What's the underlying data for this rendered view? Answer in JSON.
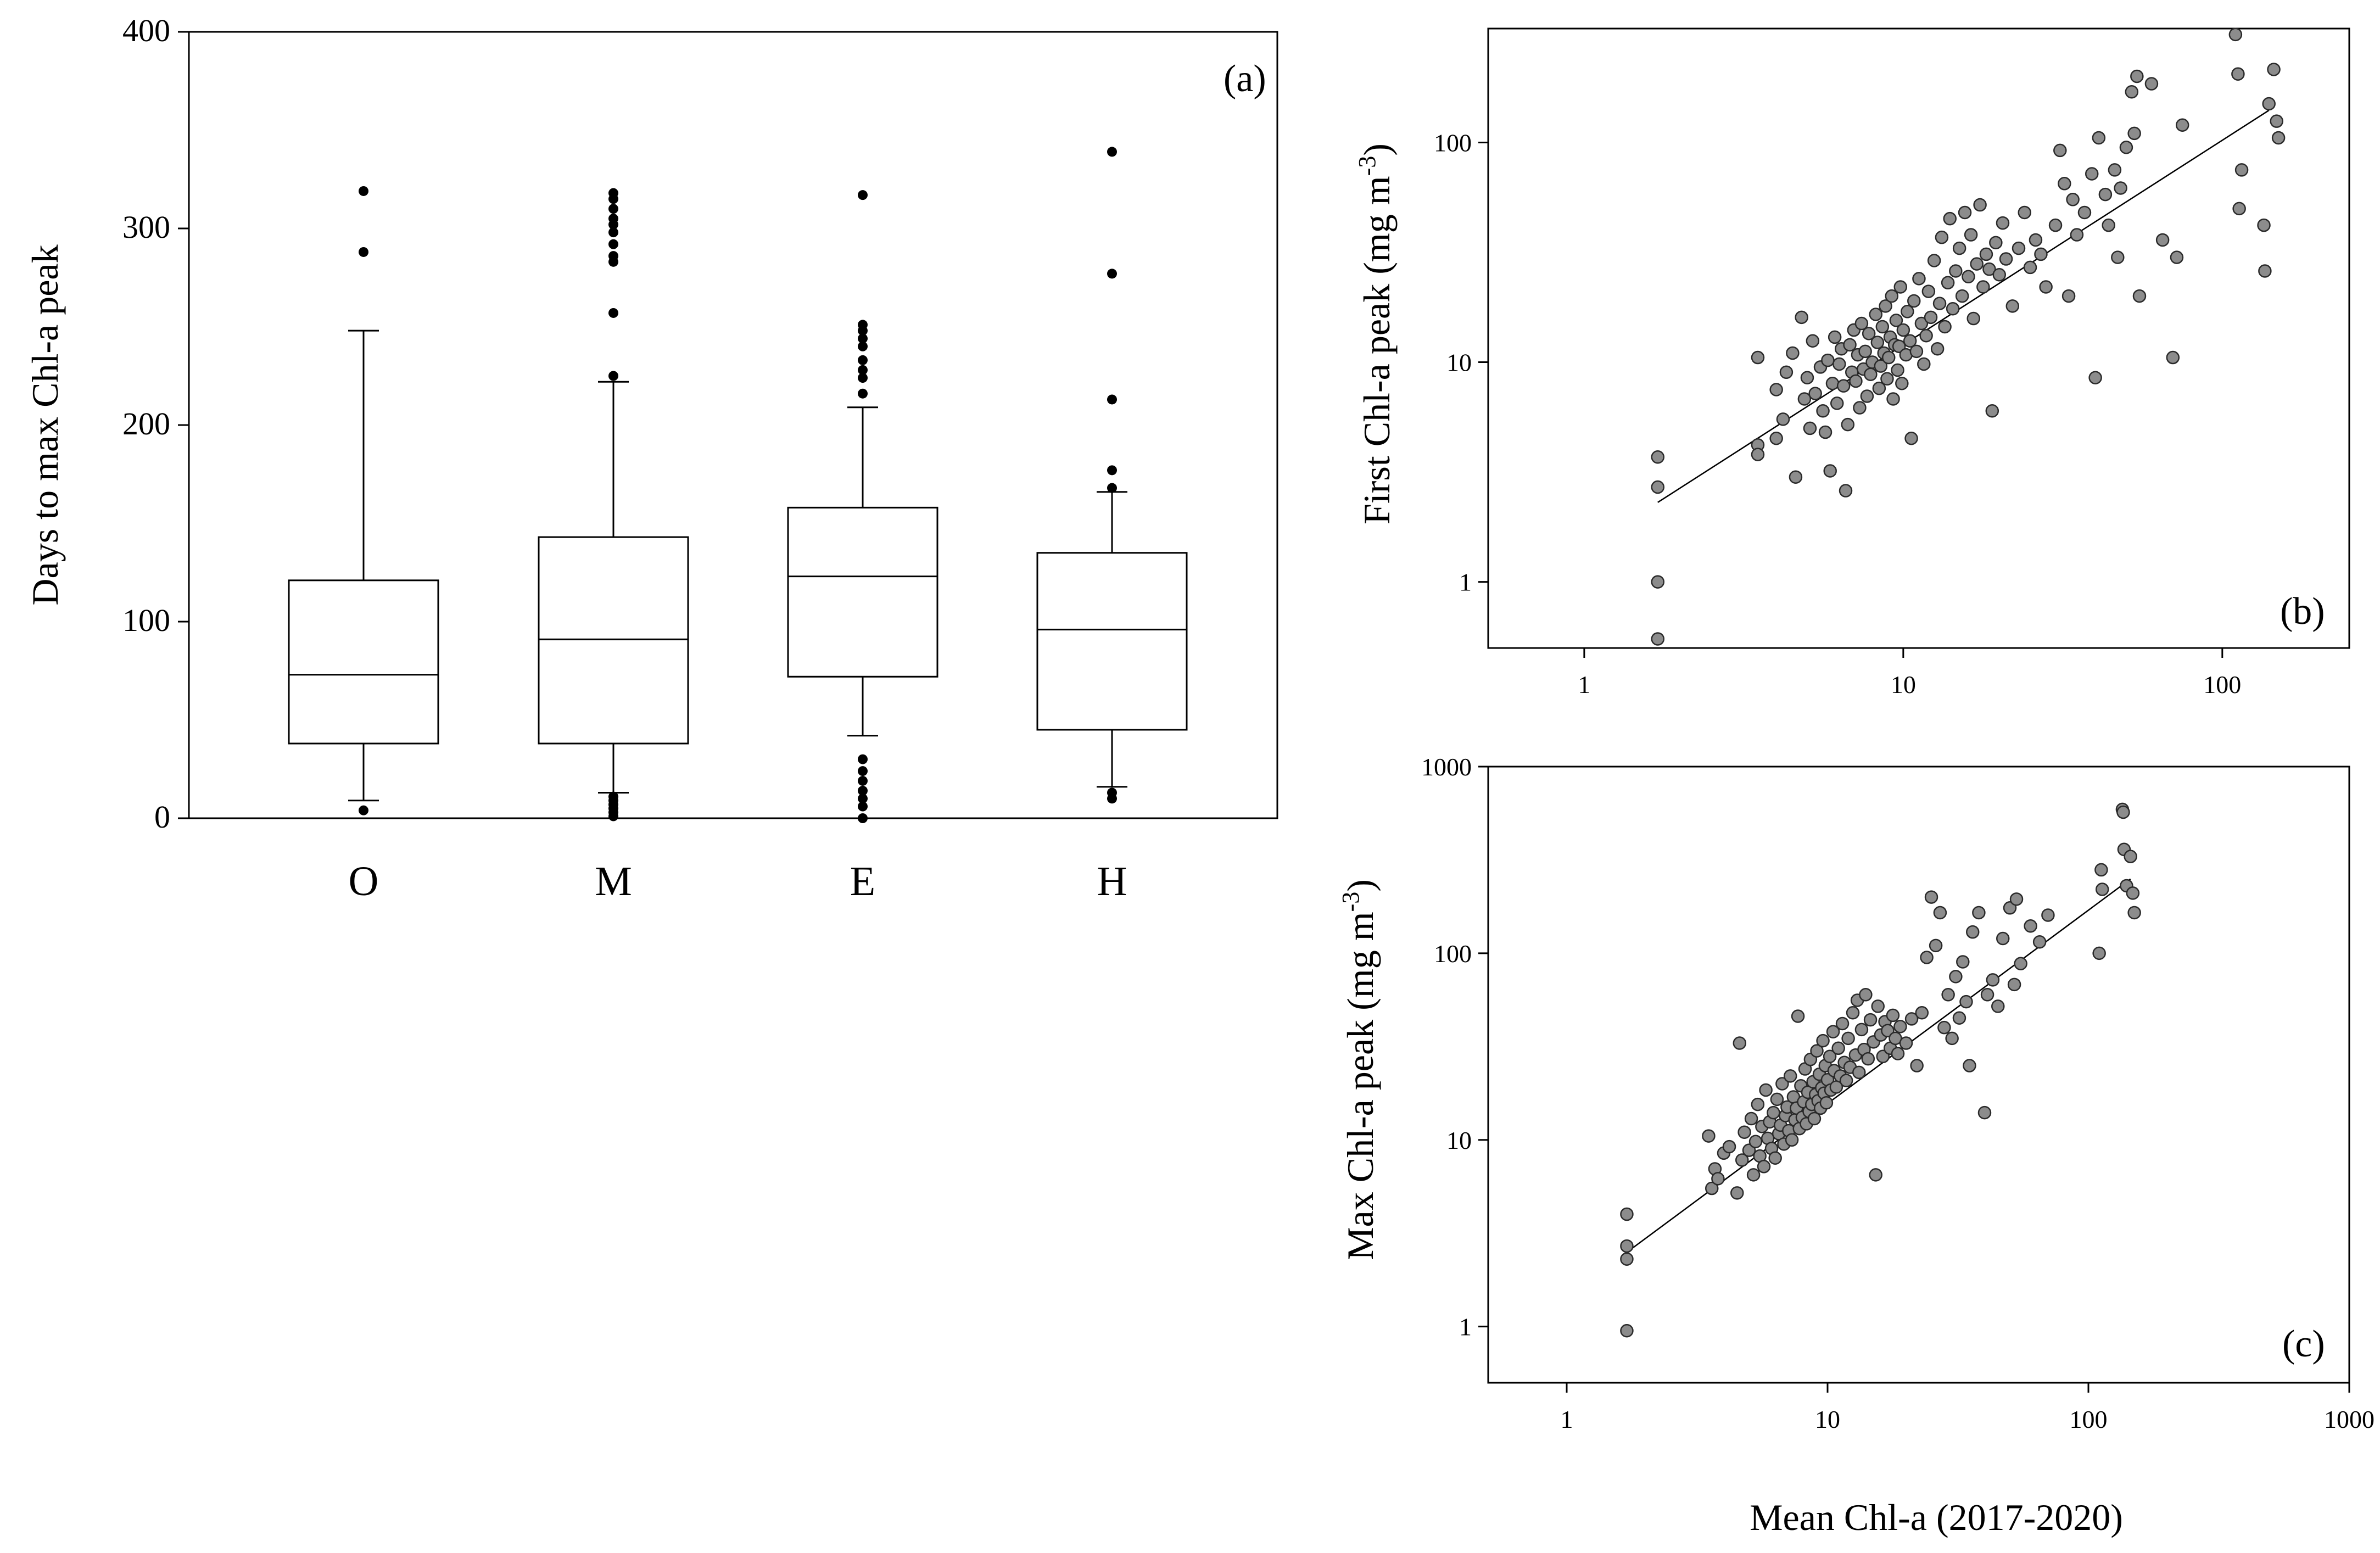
{
  "chart_data": [
    {
      "panel": "(a)",
      "type": "box",
      "ylabel": "Days to max  Chl-a peak",
      "ylim": [
        0,
        400
      ],
      "yticks": [
        "0",
        "100",
        "200",
        "300",
        "400"
      ],
      "categories": [
        "O",
        "M",
        "E",
        "H"
      ],
      "boxes": [
        {
          "name": "O",
          "whisker_low": 9,
          "q1": 38,
          "median": 73,
          "q3": 121,
          "whisker_high": 248,
          "outliers": [
            4,
            288,
            319
          ]
        },
        {
          "name": "M",
          "whisker_low": 13,
          "q1": 38,
          "median": 91,
          "q3": 143,
          "whisker_high": 222,
          "outliers": [
            1,
            3,
            5,
            7,
            9,
            11,
            225,
            257,
            283,
            286,
            292,
            298,
            302,
            305,
            310,
            315,
            318
          ]
        },
        {
          "name": "E",
          "whisker_low": 42,
          "q1": 72,
          "median": 123,
          "q3": 158,
          "whisker_high": 209,
          "outliers": [
            0,
            6,
            10,
            14,
            19,
            24,
            30,
            216,
            224,
            228,
            233,
            240,
            244,
            248,
            251,
            317
          ]
        },
        {
          "name": "H",
          "whisker_low": 16,
          "q1": 45,
          "median": 96,
          "q3": 135,
          "whisker_high": 166,
          "outliers": [
            10,
            13,
            168,
            177,
            213,
            277,
            339
          ]
        }
      ]
    },
    {
      "panel": "(b)",
      "type": "scatter",
      "xscale": "log",
      "yscale": "log",
      "xlabel": "",
      "ylabel": "First Chl-a peak (mg m",
      "ylabel_sup": "-3",
      "ylabel_close": ")",
      "xlim": [
        0.5,
        250
      ],
      "ylim": [
        0.5,
        330
      ],
      "xticks": [
        "1",
        "10",
        "100"
      ],
      "yticks": [
        "1",
        "10",
        "100"
      ],
      "fit_line": {
        "x": [
          1.7,
          140
        ],
        "y": [
          2.3,
          140
        ]
      },
      "points": [
        [
          1.7,
          3.7
        ],
        [
          1.7,
          2.7
        ],
        [
          1.7,
          1.0
        ],
        [
          1.7,
          0.55
        ],
        [
          3.5,
          10.5
        ],
        [
          3.5,
          4.2
        ],
        [
          3.5,
          3.8
        ],
        [
          4.0,
          7.5
        ],
        [
          4.0,
          4.5
        ],
        [
          4.2,
          5.5
        ],
        [
          4.3,
          9.0
        ],
        [
          4.5,
          11.0
        ],
        [
          4.6,
          3.0
        ],
        [
          4.8,
          16.0
        ],
        [
          4.9,
          6.8
        ],
        [
          5.0,
          8.5
        ],
        [
          5.1,
          5.0
        ],
        [
          5.2,
          12.5
        ],
        [
          5.3,
          7.2
        ],
        [
          5.5,
          9.5
        ],
        [
          5.6,
          6.0
        ],
        [
          5.7,
          4.8
        ],
        [
          5.8,
          10.2
        ],
        [
          5.9,
          3.2
        ],
        [
          6.0,
          8.0
        ],
        [
          6.1,
          13.0
        ],
        [
          6.2,
          6.5
        ],
        [
          6.3,
          9.8
        ],
        [
          6.4,
          11.5
        ],
        [
          6.5,
          7.8
        ],
        [
          6.6,
          2.6
        ],
        [
          6.7,
          5.2
        ],
        [
          6.8,
          12.0
        ],
        [
          6.9,
          9.0
        ],
        [
          7.0,
          14.0
        ],
        [
          7.1,
          8.2
        ],
        [
          7.2,
          10.8
        ],
        [
          7.3,
          6.2
        ],
        [
          7.4,
          15.0
        ],
        [
          7.5,
          9.3
        ],
        [
          7.6,
          11.2
        ],
        [
          7.7,
          7.0
        ],
        [
          7.8,
          13.5
        ],
        [
          7.9,
          8.8
        ],
        [
          8.0,
          10.0
        ],
        [
          8.2,
          16.5
        ],
        [
          8.3,
          12.3
        ],
        [
          8.4,
          7.6
        ],
        [
          8.5,
          9.6
        ],
        [
          8.6,
          14.5
        ],
        [
          8.7,
          11.0
        ],
        [
          8.8,
          18.0
        ],
        [
          8.9,
          8.4
        ],
        [
          9.0,
          10.5
        ],
        [
          9.1,
          13.0
        ],
        [
          9.2,
          20.0
        ],
        [
          9.3,
          6.8
        ],
        [
          9.4,
          12.0
        ],
        [
          9.5,
          15.5
        ],
        [
          9.6,
          9.2
        ],
        [
          9.7,
          11.8
        ],
        [
          9.8,
          22.0
        ],
        [
          9.9,
          8.0
        ],
        [
          10.0,
          14.0
        ],
        [
          10.2,
          10.8
        ],
        [
          10.3,
          17.0
        ],
        [
          10.5,
          12.5
        ],
        [
          10.6,
          4.5
        ],
        [
          10.8,
          19.0
        ],
        [
          11.0,
          11.2
        ],
        [
          11.2,
          24.0
        ],
        [
          11.4,
          15.0
        ],
        [
          11.6,
          9.8
        ],
        [
          11.8,
          13.2
        ],
        [
          12.0,
          21.0
        ],
        [
          12.2,
          16.0
        ],
        [
          12.5,
          29.0
        ],
        [
          12.8,
          11.5
        ],
        [
          13.0,
          18.5
        ],
        [
          13.2,
          37.0
        ],
        [
          13.5,
          14.5
        ],
        [
          13.8,
          23.0
        ],
        [
          14.0,
          45.0
        ],
        [
          14.3,
          17.5
        ],
        [
          14.6,
          26.0
        ],
        [
          15.0,
          33.0
        ],
        [
          15.3,
          20.0
        ],
        [
          15.6,
          48.0
        ],
        [
          16.0,
          24.5
        ],
        [
          16.3,
          38.0
        ],
        [
          16.6,
          15.8
        ],
        [
          17.0,
          28.0
        ],
        [
          17.4,
          52.0
        ],
        [
          17.8,
          22.0
        ],
        [
          18.2,
          31.0
        ],
        [
          18.6,
          26.5
        ],
        [
          19.0,
          6.0
        ],
        [
          19.5,
          35.0
        ],
        [
          20.0,
          25.0
        ],
        [
          20.5,
          43.0
        ],
        [
          21.0,
          29.5
        ],
        [
          22.0,
          18.0
        ],
        [
          23.0,
          33.0
        ],
        [
          24.0,
          48.0
        ],
        [
          25.0,
          27.0
        ],
        [
          26.0,
          36.0
        ],
        [
          27.0,
          31.0
        ],
        [
          28.0,
          22.0
        ],
        [
          30.0,
          42.0
        ],
        [
          31.0,
          92.0
        ],
        [
          32.0,
          65.0
        ],
        [
          33.0,
          20.0
        ],
        [
          34.0,
          55.0
        ],
        [
          35.0,
          38.0
        ],
        [
          37.0,
          48.0
        ],
        [
          39.0,
          72.0
        ],
        [
          40.0,
          8.5
        ],
        [
          41.0,
          105.0
        ],
        [
          43.0,
          58.0
        ],
        [
          44.0,
          42.0
        ],
        [
          46.0,
          75.0
        ],
        [
          47.0,
          30.0
        ],
        [
          48.0,
          62.0
        ],
        [
          50.0,
          95.0
        ],
        [
          52.0,
          170.0
        ],
        [
          53.0,
          110.0
        ],
        [
          54.0,
          200.0
        ],
        [
          55.0,
          20.0
        ],
        [
          60.0,
          185.0
        ],
        [
          65.0,
          36.0
        ],
        [
          70.0,
          10.5
        ],
        [
          72.0,
          30.0
        ],
        [
          75.0,
          120.0
        ],
        [
          110.0,
          310.0
        ],
        [
          112.0,
          205.0
        ],
        [
          113.0,
          50.0
        ],
        [
          115.0,
          75.0
        ],
        [
          135.0,
          42.0
        ],
        [
          136.0,
          26.0
        ],
        [
          140.0,
          150.0
        ],
        [
          145.0,
          215.0
        ],
        [
          148.0,
          125.0
        ],
        [
          150.0,
          105.0
        ]
      ]
    },
    {
      "panel": "(c)",
      "type": "scatter",
      "xscale": "log",
      "yscale": "log",
      "xlabel": "Mean Chl-a  (2017-2020)",
      "ylabel": "Max Chl-a peak (mg m",
      "ylabel_sup": "-3",
      "ylabel_close": ")",
      "xlim": [
        0.5,
        1000
      ],
      "ylim": [
        0.5,
        1000
      ],
      "xticks": [
        "1",
        "10",
        "100",
        "1000"
      ],
      "yticks": [
        "1",
        "10",
        "100",
        "1000"
      ],
      "fit_line": {
        "x": [
          1.7,
          145
        ],
        "y": [
          2.5,
          250
        ]
      },
      "points": [
        [
          1.7,
          4.0
        ],
        [
          1.7,
          2.7
        ],
        [
          1.7,
          2.3
        ],
        [
          1.7,
          0.95
        ],
        [
          3.5,
          10.5
        ],
        [
          3.6,
          5.5
        ],
        [
          3.7,
          7.0
        ],
        [
          3.8,
          6.2
        ],
        [
          4.0,
          8.5
        ],
        [
          4.2,
          9.2
        ],
        [
          4.5,
          5.2
        ],
        [
          4.6,
          33.0
        ],
        [
          4.7,
          7.8
        ],
        [
          4.8,
          11.0
        ],
        [
          5.0,
          8.8
        ],
        [
          5.1,
          13.0
        ],
        [
          5.2,
          6.5
        ],
        [
          5.3,
          9.8
        ],
        [
          5.4,
          15.5
        ],
        [
          5.5,
          8.2
        ],
        [
          5.6,
          11.8
        ],
        [
          5.7,
          7.2
        ],
        [
          5.8,
          18.5
        ],
        [
          5.9,
          10.2
        ],
        [
          6.0,
          12.5
        ],
        [
          6.1,
          9.0
        ],
        [
          6.2,
          14.0
        ],
        [
          6.3,
          8.0
        ],
        [
          6.4,
          16.5
        ],
        [
          6.5,
          10.8
        ],
        [
          6.6,
          12.0
        ],
        [
          6.7,
          20.0
        ],
        [
          6.8,
          9.5
        ],
        [
          6.9,
          13.5
        ],
        [
          7.0,
          15.0
        ],
        [
          7.1,
          11.2
        ],
        [
          7.2,
          22.0
        ],
        [
          7.3,
          10.0
        ],
        [
          7.4,
          17.0
        ],
        [
          7.5,
          12.8
        ],
        [
          7.6,
          14.8
        ],
        [
          7.7,
          46.0
        ],
        [
          7.8,
          11.5
        ],
        [
          7.9,
          19.5
        ],
        [
          8.0,
          13.2
        ],
        [
          8.1,
          16.0
        ],
        [
          8.2,
          24.0
        ],
        [
          8.3,
          12.2
        ],
        [
          8.4,
          18.0
        ],
        [
          8.5,
          14.2
        ],
        [
          8.6,
          27.0
        ],
        [
          8.7,
          15.5
        ],
        [
          8.8,
          20.5
        ],
        [
          8.9,
          13.0
        ],
        [
          9.0,
          17.5
        ],
        [
          9.1,
          30.0
        ],
        [
          9.2,
          16.2
        ],
        [
          9.3,
          22.5
        ],
        [
          9.4,
          14.8
        ],
        [
          9.5,
          19.0
        ],
        [
          9.6,
          34.0
        ],
        [
          9.7,
          17.8
        ],
        [
          9.8,
          25.0
        ],
        [
          9.9,
          15.8
        ],
        [
          10.0,
          21.0
        ],
        [
          10.2,
          28.0
        ],
        [
          10.3,
          18.5
        ],
        [
          10.5,
          38.0
        ],
        [
          10.6,
          23.5
        ],
        [
          10.8,
          19.2
        ],
        [
          11.0,
          31.0
        ],
        [
          11.2,
          22.0
        ],
        [
          11.4,
          42.0
        ],
        [
          11.6,
          26.0
        ],
        [
          11.8,
          20.8
        ],
        [
          12.0,
          35.0
        ],
        [
          12.2,
          24.5
        ],
        [
          12.5,
          48.0
        ],
        [
          12.8,
          28.5
        ],
        [
          13.0,
          56.0
        ],
        [
          13.2,
          23.0
        ],
        [
          13.5,
          39.0
        ],
        [
          13.8,
          30.5
        ],
        [
          14.0,
          60.0
        ],
        [
          14.3,
          27.2
        ],
        [
          14.6,
          44.0
        ],
        [
          15.0,
          33.5
        ],
        [
          15.3,
          6.5
        ],
        [
          15.6,
          52.0
        ],
        [
          16.0,
          36.5
        ],
        [
          16.3,
          28.0
        ],
        [
          16.6,
          43.0
        ],
        [
          17.0,
          38.5
        ],
        [
          17.4,
          31.0
        ],
        [
          17.8,
          46.5
        ],
        [
          18.2,
          35.0
        ],
        [
          18.6,
          29.0
        ],
        [
          19.0,
          40.5
        ],
        [
          20.0,
          33.0
        ],
        [
          21.0,
          44.5
        ],
        [
          22.0,
          25.0
        ],
        [
          23.0,
          48.0
        ],
        [
          24.0,
          95.0
        ],
        [
          25.0,
          200.0
        ],
        [
          26.0,
          110.0
        ],
        [
          27.0,
          165.0
        ],
        [
          28.0,
          40.0
        ],
        [
          29.0,
          60.0
        ],
        [
          30.0,
          35.0
        ],
        [
          31.0,
          75.0
        ],
        [
          32.0,
          45.0
        ],
        [
          33.0,
          90.0
        ],
        [
          34.0,
          55.0
        ],
        [
          35.0,
          25.0
        ],
        [
          36.0,
          130.0
        ],
        [
          38.0,
          165.0
        ],
        [
          40.0,
          14.0
        ],
        [
          41.0,
          60.0
        ],
        [
          43.0,
          72.0
        ],
        [
          45.0,
          52.0
        ],
        [
          47.0,
          120.0
        ],
        [
          50.0,
          175.0
        ],
        [
          52.0,
          68.0
        ],
        [
          53.0,
          195.0
        ],
        [
          55.0,
          88.0
        ],
        [
          60.0,
          140.0
        ],
        [
          65.0,
          115.0
        ],
        [
          70.0,
          160.0
        ],
        [
          110.0,
          100.0
        ],
        [
          112.0,
          280.0
        ],
        [
          113.0,
          220.0
        ],
        [
          135.0,
          590.0
        ],
        [
          136.0,
          570.0
        ],
        [
          137.0,
          360.0
        ],
        [
          140.0,
          230.0
        ],
        [
          145.0,
          330.0
        ],
        [
          148.0,
          210.0
        ],
        [
          150.0,
          165.0
        ]
      ]
    }
  ]
}
